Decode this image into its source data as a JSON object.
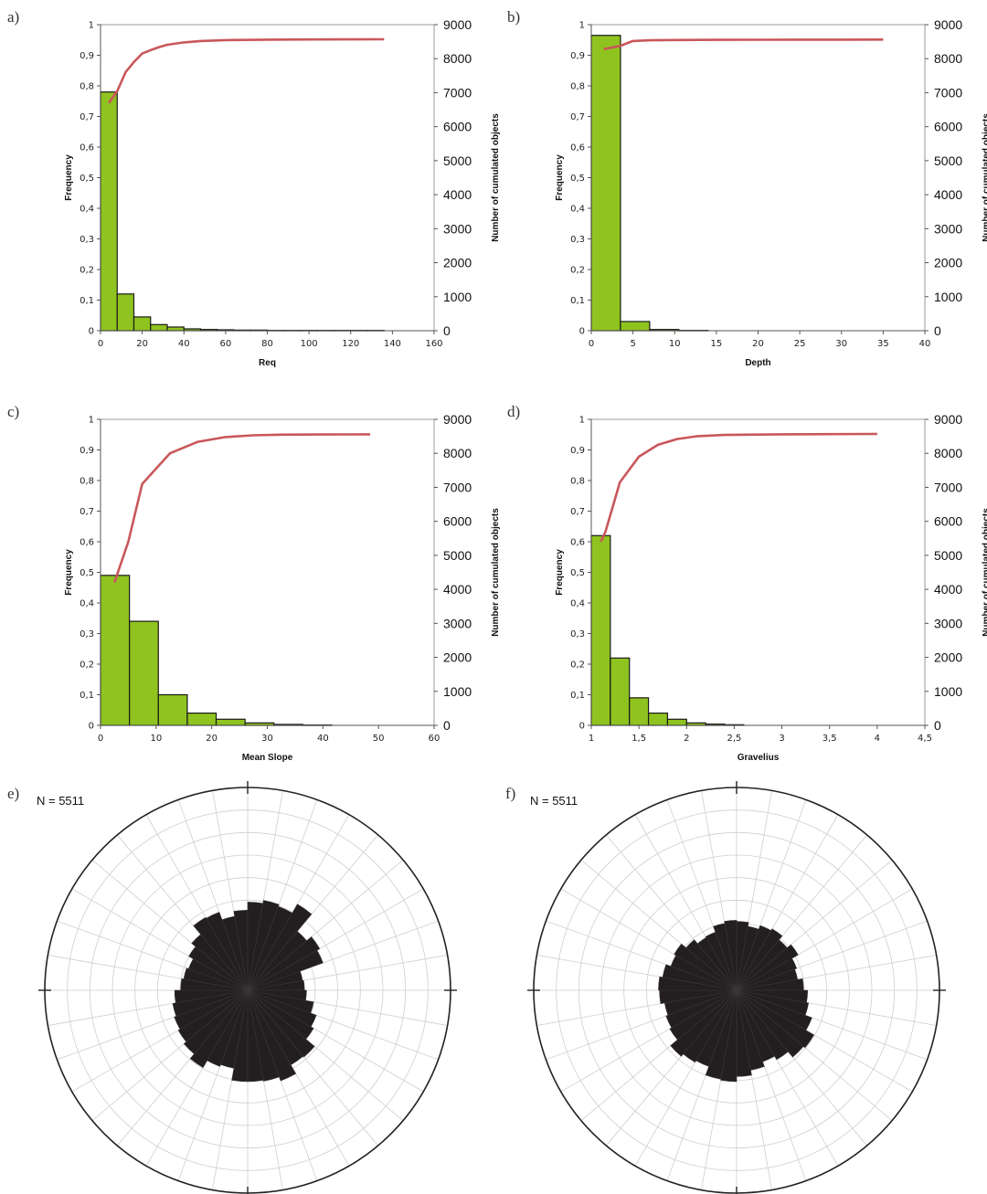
{
  "colors": {
    "bar": "#8fc31f",
    "bar_stroke": "#1a1a1a",
    "line": "#c9575a",
    "rose": "#231f20",
    "grid": "#cfcfcf",
    "circle": "#222222"
  },
  "chart_data": [
    {
      "panel": "a)",
      "type": "bar",
      "xlabel": "Req",
      "ylabel": "Frequency",
      "y2label": "Number of cumulated objects",
      "xlim": [
        0,
        160
      ],
      "ylim": [
        0,
        1
      ],
      "y2lim": [
        0,
        9000
      ],
      "xticks": [
        "0",
        "20",
        "40",
        "60",
        "80",
        "100",
        "120",
        "140",
        "160"
      ],
      "yticks": [
        "0",
        "0,1",
        "0,2",
        "0,3",
        "0,4",
        "0,5",
        "0,6",
        "0,7",
        "0,8",
        "0,9",
        "1"
      ],
      "y2ticks": [
        "0",
        "1000",
        "2000",
        "3000",
        "4000",
        "5000",
        "6000",
        "7000",
        "8000",
        "9000"
      ],
      "bins": [
        [
          0,
          8
        ],
        [
          8,
          16
        ],
        [
          16,
          24
        ],
        [
          24,
          32
        ],
        [
          32,
          40
        ],
        [
          40,
          48
        ],
        [
          48,
          56
        ],
        [
          56,
          64
        ],
        [
          64,
          72
        ],
        [
          72,
          80
        ],
        [
          80,
          88
        ],
        [
          88,
          96
        ],
        [
          96,
          104
        ],
        [
          104,
          112
        ],
        [
          112,
          120
        ],
        [
          120,
          128
        ],
        [
          128,
          136
        ]
      ],
      "values": [
        0.78,
        0.12,
        0.045,
        0.02,
        0.012,
        0.006,
        0.004,
        0.003,
        0.002,
        0.002,
        0.001,
        0.001,
        0.001,
        0.001,
        0.001,
        0.001,
        0.001
      ],
      "cumulative": {
        "x": [
          4,
          8,
          12,
          16,
          20,
          24,
          28,
          32,
          40,
          48,
          60,
          80,
          100,
          120,
          136
        ],
        "y": [
          6700,
          7050,
          7600,
          7900,
          8150,
          8250,
          8340,
          8410,
          8480,
          8520,
          8545,
          8560,
          8565,
          8568,
          8570
        ]
      }
    },
    {
      "panel": "b)",
      "type": "bar",
      "xlabel": "Depth",
      "ylabel": "Frequency",
      "y2label": "Number of cumulated objects",
      "xlim": [
        0,
        40
      ],
      "ylim": [
        0,
        1
      ],
      "y2lim": [
        0,
        9000
      ],
      "xticks": [
        "0",
        "5",
        "10",
        "15",
        "20",
        "25",
        "30",
        "35",
        "40"
      ],
      "yticks": [
        "0",
        "0,1",
        "0,2",
        "0,3",
        "0,4",
        "0,5",
        "0,6",
        "0,7",
        "0,8",
        "0,9",
        "1"
      ],
      "y2ticks": [
        "0",
        "1000",
        "2000",
        "3000",
        "4000",
        "5000",
        "6000",
        "7000",
        "8000",
        "9000"
      ],
      "bins": [
        [
          0,
          3.5
        ],
        [
          3.5,
          7
        ],
        [
          7,
          10.5
        ],
        [
          10.5,
          14
        ]
      ],
      "values": [
        0.965,
        0.03,
        0.004,
        0.001
      ],
      "cumulative": {
        "x": [
          1.5,
          3.5,
          5,
          7,
          10,
          15,
          20,
          25,
          30,
          35
        ],
        "y": [
          8280,
          8380,
          8520,
          8540,
          8550,
          8555,
          8558,
          8560,
          8560,
          8562
        ]
      }
    },
    {
      "panel": "c)",
      "type": "bar",
      "xlabel": "Mean Slope",
      "ylabel": "Frequency",
      "y2label": "Number of cumulated objects",
      "xlim": [
        0,
        60
      ],
      "ylim": [
        0,
        1
      ],
      "y2lim": [
        0,
        9000
      ],
      "xticks": [
        "0",
        "10",
        "20",
        "30",
        "40",
        "50",
        "60"
      ],
      "yticks": [
        "0",
        "0,1",
        "0,2",
        "0,3",
        "0,4",
        "0,5",
        "0,6",
        "0,7",
        "0,8",
        "0,9",
        "1"
      ],
      "y2ticks": [
        "0",
        "1000",
        "2000",
        "3000",
        "4000",
        "5000",
        "6000",
        "7000",
        "8000",
        "9000"
      ],
      "bins": [
        [
          0,
          5.2
        ],
        [
          5.2,
          10.4
        ],
        [
          10.4,
          15.6
        ],
        [
          15.6,
          20.8
        ],
        [
          20.8,
          26
        ],
        [
          26,
          31.2
        ],
        [
          31.2,
          36.4
        ],
        [
          36.4,
          41.6
        ]
      ],
      "values": [
        0.49,
        0.34,
        0.1,
        0.04,
        0.02,
        0.008,
        0.003,
        0.001
      ],
      "cumulative": {
        "x": [
          2.5,
          5,
          7.5,
          12.5,
          17.5,
          22.5,
          27.5,
          32.5,
          40,
          48.5
        ],
        "y": [
          4200,
          5400,
          7100,
          8000,
          8340,
          8480,
          8530,
          8550,
          8555,
          8560
        ]
      }
    },
    {
      "panel": "d)",
      "type": "bar",
      "xlabel": "Gravelius",
      "ylabel": "Frequency",
      "y2label": "Number of cumulated objects",
      "xlim": [
        1,
        4.5
      ],
      "ylim": [
        0,
        1
      ],
      "y2lim": [
        0,
        9000
      ],
      "xticks": [
        "1",
        "1,5",
        "2",
        "2,5",
        "3",
        "3,5",
        "4",
        "4,5"
      ],
      "yticks": [
        "0",
        "0,1",
        "0,2",
        "0,3",
        "0,4",
        "0,5",
        "0,6",
        "0,7",
        "0,8",
        "0,9",
        "1"
      ],
      "y2ticks": [
        "0",
        "1000",
        "2000",
        "3000",
        "4000",
        "5000",
        "6000",
        "7000",
        "8000",
        "9000"
      ],
      "bins": [
        [
          1,
          1.2
        ],
        [
          1.2,
          1.4
        ],
        [
          1.4,
          1.6
        ],
        [
          1.6,
          1.8
        ],
        [
          1.8,
          2.0
        ],
        [
          2.0,
          2.2
        ],
        [
          2.2,
          2.4
        ],
        [
          2.4,
          2.6
        ]
      ],
      "values": [
        0.62,
        0.22,
        0.09,
        0.04,
        0.02,
        0.008,
        0.004,
        0.002
      ],
      "cumulative": {
        "x": [
          1.1,
          1.15,
          1.3,
          1.5,
          1.7,
          1.9,
          2.1,
          2.4,
          3.0,
          4.0
        ],
        "y": [
          5400,
          5700,
          7150,
          7900,
          8250,
          8420,
          8500,
          8540,
          8560,
          8570
        ]
      }
    },
    {
      "panel": "e)",
      "type": "rose",
      "label": "N = 5511",
      "sectors": 36,
      "rlim": [
        0,
        1
      ],
      "values": [
        0.87,
        0.9,
        0.88,
        0.98,
        0.76,
        0.82,
        0.79,
        0.55,
        0.56,
        0.58,
        0.66,
        0.72,
        0.75,
        0.86,
        0.85,
        0.95,
        0.91,
        0.9,
        0.9,
        0.78,
        0.8,
        0.88,
        0.82,
        0.79,
        0.77,
        0.75,
        0.72,
        0.66,
        0.64,
        0.62,
        0.67,
        0.72,
        0.83,
        0.82,
        0.74,
        0.79
      ]
    },
    {
      "panel": "f)",
      "type": "rose",
      "label": "N = 5511",
      "sectors": 36,
      "rlim": [
        0,
        1
      ],
      "values": [
        0.68,
        0.64,
        0.68,
        0.7,
        0.65,
        0.7,
        0.63,
        0.61,
        0.66,
        0.7,
        0.72,
        0.79,
        0.88,
        0.86,
        0.79,
        0.75,
        0.8,
        0.85,
        0.9,
        0.89,
        0.8,
        0.82,
        0.85,
        0.76,
        0.74,
        0.72,
        0.76,
        0.77,
        0.74,
        0.69,
        0.71,
        0.65,
        0.6,
        0.61,
        0.67,
        0.69
      ]
    }
  ]
}
